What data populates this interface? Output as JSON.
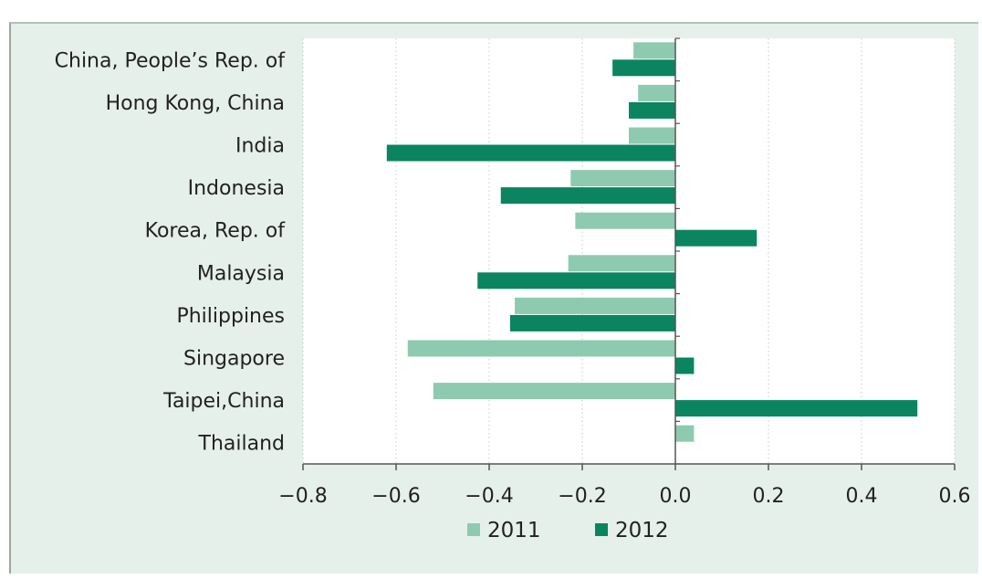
{
  "chart_data": {
    "type": "bar",
    "orientation": "horizontal",
    "categories": [
      "China, People’s Rep. of",
      "Hong Kong, China",
      "India",
      "Indonesia",
      "Korea, Rep. of",
      "Malaysia",
      "Philippines",
      "Singapore",
      "Taipei,China",
      "Thailand"
    ],
    "series": [
      {
        "name": "2011",
        "color": "#8ecab0",
        "values": [
          -0.09,
          -0.08,
          -0.1,
          -0.225,
          -0.215,
          -0.23,
          -0.345,
          -0.575,
          -0.52,
          0.04
        ]
      },
      {
        "name": "2012",
        "color": "#0a8560",
        "values": [
          -0.135,
          -0.1,
          -0.62,
          -0.375,
          0.175,
          -0.425,
          -0.355,
          0.04,
          0.52,
          null
        ]
      }
    ],
    "xlim": [
      -0.8,
      0.6
    ],
    "xticks": [
      "−0.8",
      "−0.6",
      "−0.4",
      "−0.2",
      "0.0",
      "0.2",
      "0.4",
      "0.6"
    ],
    "xtick_values": [
      -0.8,
      -0.6,
      -0.4,
      -0.2,
      0.0,
      0.2,
      0.4,
      0.6
    ],
    "grid": "vertical dotted",
    "legend_position": "bottom",
    "title": "",
    "xlabel": "",
    "ylabel": ""
  }
}
